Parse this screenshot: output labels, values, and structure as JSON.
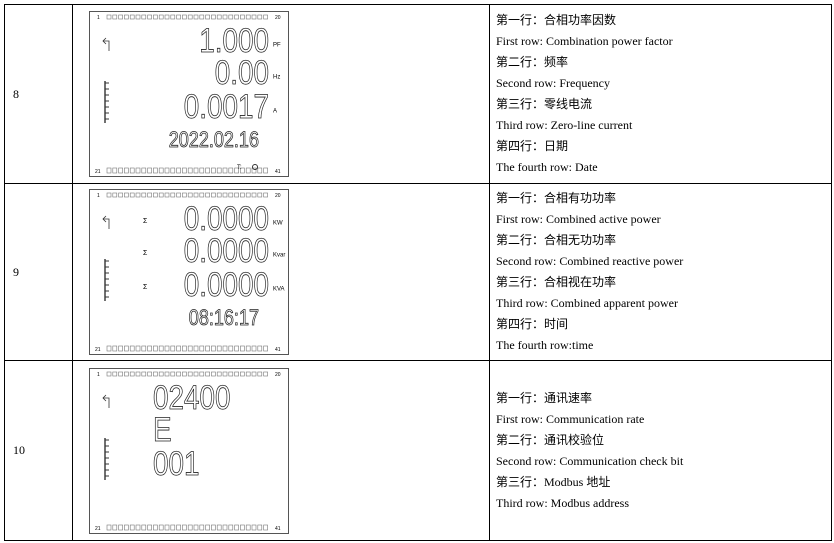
{
  "rows": [
    {
      "no": "8",
      "lcd": {
        "scale": [
          "1",
          "20",
          "21",
          "41"
        ],
        "extra": "T:",
        "lines": [
          {
            "text": "1.000",
            "unit": "PF"
          },
          {
            "text": "0.00",
            "unit": "Hz"
          },
          {
            "text": "0.0017",
            "unit": "A"
          },
          {
            "text": "2022.02.16"
          }
        ]
      },
      "desc": [
        "第一行：合相功率因数",
        "First row: Combination power factor",
        "第二行：频率",
        "Second row: Frequency",
        "第三行：零线电流",
        "Third row: Zero-line current",
        "第四行：日期",
        "The fourth row: Date"
      ]
    },
    {
      "no": "9",
      "lcd": {
        "scale": [
          "1",
          "20",
          "21",
          "41"
        ],
        "lines": [
          {
            "prefix": "Σ",
            "text": "0.0000",
            "unit": "KW"
          },
          {
            "prefix": "Σ",
            "text": "0.0000",
            "unit": "Kvar"
          },
          {
            "prefix": "Σ",
            "text": "0.0000",
            "unit": "KVA"
          },
          {
            "text": "08:16:17"
          }
        ]
      },
      "desc": [
        "第一行：合相有功功率",
        "First row: Combined active power",
        "第二行：合相无功功率",
        "Second row: Combined reactive power",
        "第三行：合相视在功率",
        "Third row: Combined apparent power",
        "第四行：时间",
        "The fourth row:time"
      ]
    },
    {
      "no": "10",
      "lcd": {
        "scale": [
          "1",
          "20",
          "21",
          "41"
        ],
        "lines": [
          {
            "text": "02400"
          },
          {
            "text": "E"
          },
          {
            "text": "001"
          }
        ]
      },
      "desc": [
        "第一行：通讯速率",
        "First row: Communication rate",
        "第二行：通讯校验位",
        "Second row: Communication check bit",
        "第三行：Modbus 地址",
        "Third row: Modbus address"
      ]
    }
  ]
}
